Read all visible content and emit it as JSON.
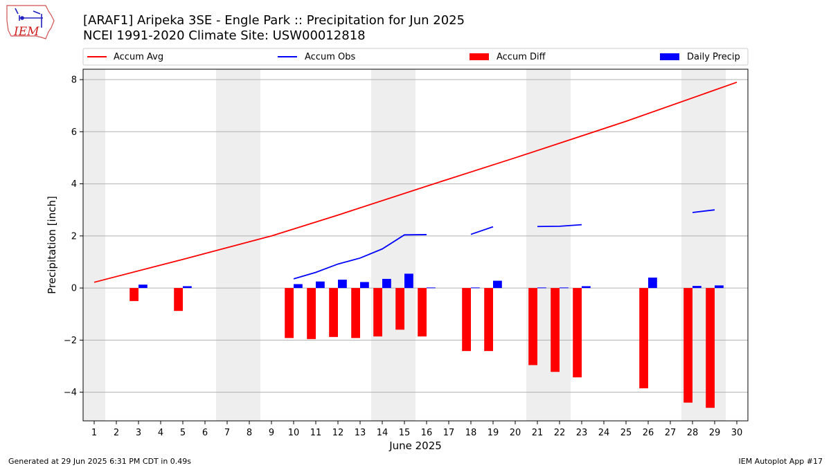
{
  "header": {
    "title_line1": "[ARAF1] Aripeka 3SE - Engle Park :: Precipitation for Jun 2025",
    "title_line2": "NCEI 1991-2020 Climate Site: USW00012818",
    "logo_text": "IEM"
  },
  "footer": {
    "left": "Generated at 29 Jun 2025 6:31 PM CDT in 0.49s",
    "right": "IEM Autoplot App #17"
  },
  "colors": {
    "accum_avg": "#ff0000",
    "accum_obs": "#0000ff",
    "accum_diff": "#ff0000",
    "daily_precip": "#0000ff",
    "weekend_shade": "#eeeeee",
    "grid": "#b0b0b0"
  },
  "chart_data": {
    "type": "bar",
    "xlabel": "June 2025",
    "ylabel": "Precipitation [inch]",
    "xlim": [
      0.5,
      30.5
    ],
    "ylim": [
      -5.1,
      8.4
    ],
    "yticks": [
      -4,
      -2,
      0,
      2,
      4,
      6,
      8
    ],
    "xticks": [
      1,
      2,
      3,
      4,
      5,
      6,
      7,
      8,
      9,
      10,
      11,
      12,
      13,
      14,
      15,
      16,
      17,
      18,
      19,
      20,
      21,
      22,
      23,
      24,
      25,
      26,
      27,
      28,
      29,
      30
    ],
    "grid": "y",
    "legend_placement": "top",
    "legend": [
      "Accum Avg",
      "Accum Obs",
      "Accum Diff",
      "Daily Precip"
    ],
    "weekend_days": [
      1,
      7,
      8,
      14,
      15,
      21,
      22,
      28,
      29
    ],
    "series": [
      {
        "name": "Accum Avg",
        "kind": "line",
        "x": [
          1,
          5,
          9,
          12,
          16,
          20,
          25,
          30
        ],
        "values": [
          0.22,
          1.1,
          2.0,
          2.8,
          3.91,
          5.0,
          6.4,
          7.9
        ]
      },
      {
        "name": "Accum Obs",
        "kind": "line",
        "x": [
          10,
          11,
          12,
          13,
          14,
          15,
          16,
          17,
          18,
          19,
          20,
          21,
          22,
          23,
          24,
          25,
          26,
          27,
          28,
          29
        ],
        "values": [
          0.35,
          0.6,
          0.92,
          1.15,
          1.5,
          2.04,
          2.05,
          null,
          2.06,
          2.35,
          null,
          2.36,
          2.37,
          2.43,
          null,
          null,
          null,
          null,
          2.9,
          3.0
        ]
      },
      {
        "name": "Accum Diff",
        "kind": "bar",
        "x": [
          3,
          5,
          10,
          11,
          12,
          13,
          14,
          15,
          16,
          18,
          19,
          21,
          22,
          23,
          26,
          28,
          29
        ],
        "values": [
          -0.5,
          -0.88,
          -1.92,
          -1.96,
          -1.88,
          -1.92,
          -1.86,
          -1.6,
          -1.86,
          -2.42,
          -2.42,
          -2.96,
          -3.22,
          -3.43,
          -3.85,
          -4.4,
          -4.6
        ]
      },
      {
        "name": "Daily Precip",
        "kind": "bar",
        "x": [
          3,
          5,
          10,
          11,
          12,
          13,
          14,
          15,
          16,
          18,
          19,
          21,
          22,
          23,
          26,
          28,
          29
        ],
        "values": [
          0.13,
          0.07,
          0.15,
          0.25,
          0.32,
          0.23,
          0.35,
          0.55,
          0.02,
          0.02,
          0.28,
          0.02,
          0.02,
          0.07,
          0.4,
          0.08,
          0.1
        ]
      }
    ]
  }
}
